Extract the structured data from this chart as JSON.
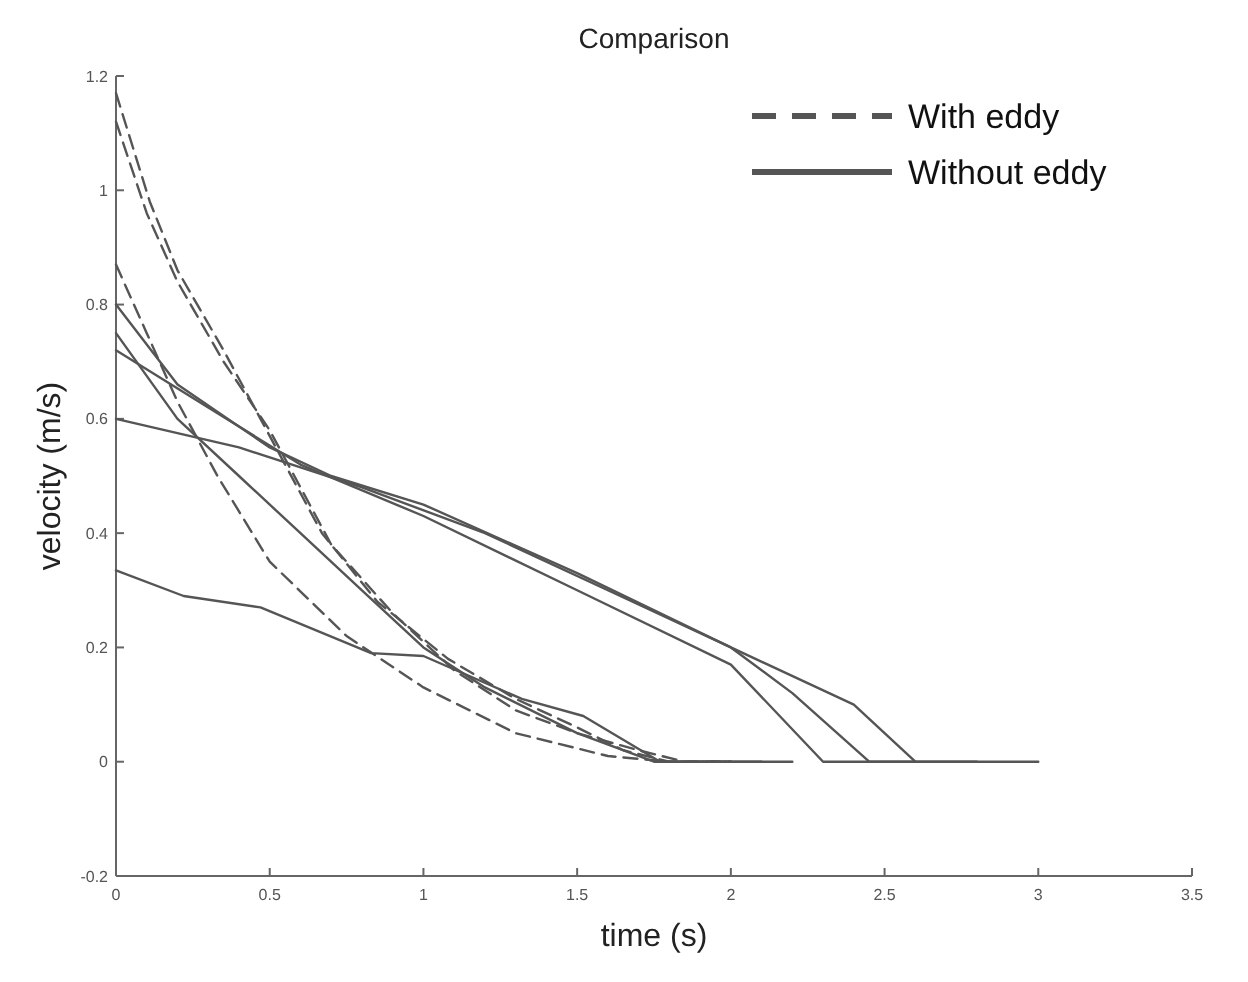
{
  "chart_data": {
    "type": "line",
    "title": "Comparison",
    "xlabel": "time (s)",
    "ylabel": "velocity (m/s)",
    "xlim": [
      0,
      3.5
    ],
    "xticks": [
      0,
      0.5,
      1,
      1.5,
      2,
      2.5,
      3,
      3.5
    ],
    "ylim": [
      -0.2,
      1.2
    ],
    "yticks": [
      -0.2,
      0,
      0.2,
      0.4,
      0.6,
      0.8,
      1,
      1.2
    ],
    "grid": false,
    "legend": "top right",
    "series": [
      {
        "name": "With eddy",
        "color": "#555555",
        "line_style": "dashed",
        "x": [
          0,
          0.11,
          0.2,
          0.35,
          0.47,
          0.55,
          0.67,
          0.85,
          1.08,
          1.3,
          1.5,
          1.65,
          1.8,
          2.0
        ],
        "values": [
          1.17,
          0.98,
          0.86,
          0.72,
          0.6,
          0.52,
          0.4,
          0.28,
          0.18,
          0.11,
          0.06,
          0.02,
          0,
          0
        ]
      },
      {
        "color": "#555555",
        "line_style": "dashed",
        "x": [
          0,
          0.1,
          0.2,
          0.35,
          0.5,
          0.6,
          0.7,
          0.9,
          1.1,
          1.3,
          1.5,
          1.7,
          1.85,
          2.0
        ],
        "values": [
          1.12,
          0.96,
          0.84,
          0.7,
          0.58,
          0.48,
          0.38,
          0.26,
          0.16,
          0.09,
          0.05,
          0.02,
          0,
          0
        ]
      },
      {
        "color": "#555555",
        "line_style": "dashed",
        "x": [
          0,
          0.1,
          0.2,
          0.33,
          0.5,
          0.75,
          1.0,
          1.3,
          1.6,
          1.8,
          2.0
        ],
        "values": [
          0.87,
          0.75,
          0.63,
          0.5,
          0.35,
          0.22,
          0.13,
          0.05,
          0.01,
          0,
          0
        ]
      },
      {
        "name": "Without eddy",
        "color": "#555555",
        "line_style": "solid",
        "x": [
          0,
          0.22,
          0.47,
          0.83,
          1.0,
          1.32,
          1.52,
          1.77,
          2.2
        ],
        "values": [
          0.335,
          0.29,
          0.27,
          0.19,
          0.185,
          0.11,
          0.08,
          0,
          0
        ]
      },
      {
        "color": "#555555",
        "line_style": "solid",
        "x": [
          0,
          0.3,
          0.6,
          1.0,
          1.5,
          2.0,
          2.3,
          2.6
        ],
        "values": [
          0.72,
          0.62,
          0.52,
          0.43,
          0.3,
          0.17,
          0,
          0
        ]
      },
      {
        "color": "#555555",
        "line_style": "solid",
        "x": [
          0,
          0.4,
          0.8,
          1.2,
          1.6,
          2.0,
          2.2,
          2.45,
          2.8
        ],
        "values": [
          0.6,
          0.55,
          0.48,
          0.4,
          0.3,
          0.2,
          0.12,
          0,
          0
        ]
      },
      {
        "color": "#555555",
        "line_style": "solid",
        "x": [
          0,
          0.2,
          0.5,
          0.7,
          1.0,
          1.5,
          2.0,
          2.4,
          2.6,
          3.0
        ],
        "values": [
          0.8,
          0.66,
          0.55,
          0.5,
          0.45,
          0.33,
          0.2,
          0.1,
          0,
          0
        ]
      },
      {
        "color": "#555555",
        "line_style": "solid",
        "x": [
          0,
          0.2,
          0.4,
          0.6,
          0.8,
          1.0,
          1.2,
          1.5,
          1.75,
          2.1
        ],
        "values": [
          0.75,
          0.6,
          0.5,
          0.4,
          0.3,
          0.2,
          0.13,
          0.05,
          0,
          0
        ]
      }
    ]
  }
}
